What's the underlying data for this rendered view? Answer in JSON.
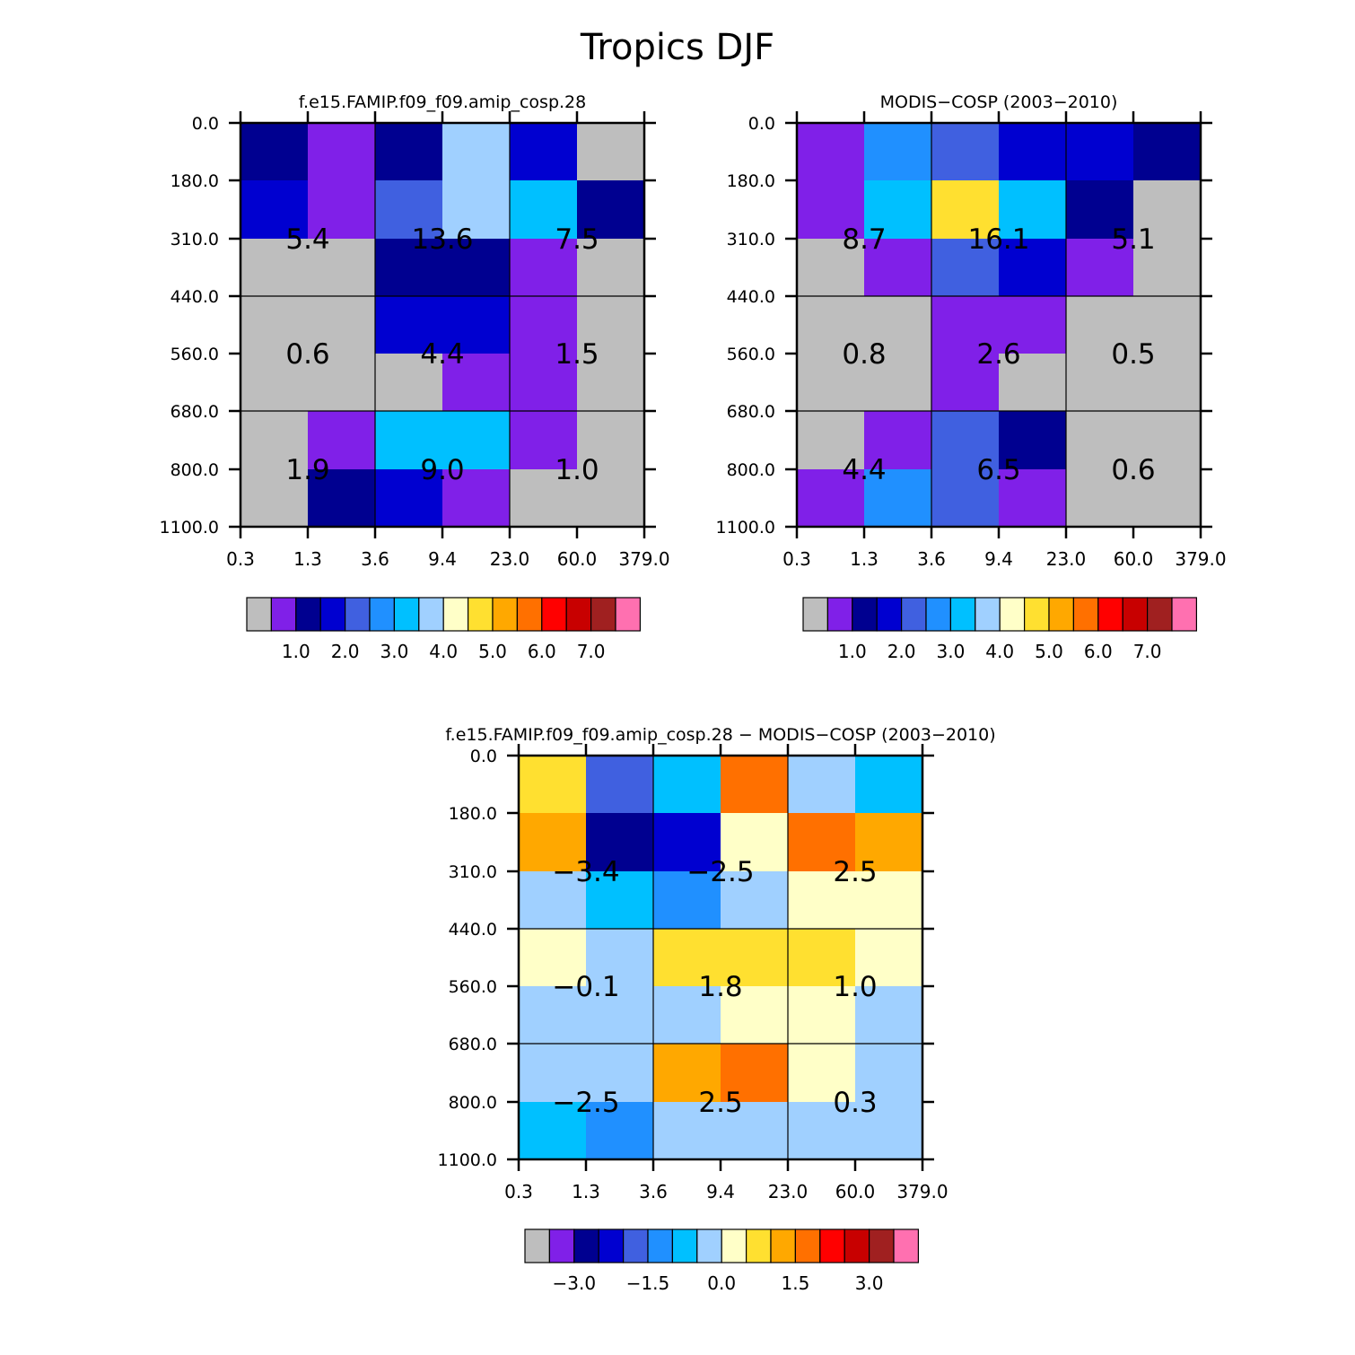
{
  "figure_title": "Tropics DJF",
  "chart_data": [
    {
      "type": "heatmap",
      "title": "f.e15.FAMIP.f09_f09.amip_cosp.28",
      "x_ticks": [
        "0.3",
        "1.3",
        "3.6",
        "9.4",
        "23.0",
        "60.0",
        "379.0"
      ],
      "y_ticks": [
        "0.0",
        "180.0",
        "310.0",
        "440.0",
        "560.0",
        "680.0",
        "800.0",
        "1100.0"
      ],
      "cell_colors": [
        [
          "#000090",
          "#8020E8",
          "#000090",
          "#A0D0FF",
          "#0000D0",
          "#BEBEBE"
        ],
        [
          "#0000D0",
          "#8020E8",
          "#4060E0",
          "#A0D0FF",
          "#00C0FF",
          "#000090"
        ],
        [
          "#BEBEBE",
          "#BEBEBE",
          "#000090",
          "#000090",
          "#8020E8",
          "#BEBEBE"
        ],
        [
          "#BEBEBE",
          "#BEBEBE",
          "#0000D0",
          "#0000D0",
          "#8020E8",
          "#BEBEBE"
        ],
        [
          "#BEBEBE",
          "#BEBEBE",
          "#BEBEBE",
          "#8020E8",
          "#8020E8",
          "#BEBEBE"
        ],
        [
          "#BEBEBE",
          "#8020E8",
          "#00C0FF",
          "#00C0FF",
          "#8020E8",
          "#BEBEBE"
        ],
        [
          "#BEBEBE",
          "#000090",
          "#0000D0",
          "#8020E8",
          "#BEBEBE",
          "#BEBEBE"
        ]
      ],
      "block_values": [
        [
          "5.4",
          "13.6",
          "7.5"
        ],
        [
          "0.6",
          "4.4",
          "1.5"
        ],
        [
          "1.9",
          "9.0",
          "1.0"
        ]
      ],
      "legend": {
        "colors": [
          "#BEBEBE",
          "#8020E8",
          "#000090",
          "#0000D0",
          "#4060E0",
          "#2090FF",
          "#00C0FF",
          "#A0D0FF",
          "#FFFFC8",
          "#FFE030",
          "#FFA800",
          "#FF7000",
          "#FF0000",
          "#C80000",
          "#A02020",
          "#FF70B0"
        ],
        "labels": [
          "1.0",
          "2.0",
          "3.0",
          "4.0",
          "5.0",
          "6.0",
          "7.0"
        ]
      }
    },
    {
      "type": "heatmap",
      "title": "MODIS-COSP (2003-2010)",
      "x_ticks": [
        "0.3",
        "1.3",
        "3.6",
        "9.4",
        "23.0",
        "60.0",
        "379.0"
      ],
      "y_ticks": [
        "0.0",
        "180.0",
        "310.0",
        "440.0",
        "560.0",
        "680.0",
        "800.0",
        "1100.0"
      ],
      "cell_colors": [
        [
          "#8020E8",
          "#2090FF",
          "#4060E0",
          "#0000D0",
          "#0000D0",
          "#000090"
        ],
        [
          "#8020E8",
          "#00C0FF",
          "#FFE030",
          "#00C0FF",
          "#000090",
          "#BEBEBE"
        ],
        [
          "#BEBEBE",
          "#8020E8",
          "#4060E0",
          "#0000D0",
          "#8020E8",
          "#BEBEBE"
        ],
        [
          "#BEBEBE",
          "#BEBEBE",
          "#8020E8",
          "#8020E8",
          "#BEBEBE",
          "#BEBEBE"
        ],
        [
          "#BEBEBE",
          "#BEBEBE",
          "#8020E8",
          "#BEBEBE",
          "#BEBEBE",
          "#BEBEBE"
        ],
        [
          "#BEBEBE",
          "#8020E8",
          "#4060E0",
          "#000090",
          "#BEBEBE",
          "#BEBEBE"
        ],
        [
          "#8020E8",
          "#2090FF",
          "#4060E0",
          "#8020E8",
          "#BEBEBE",
          "#BEBEBE"
        ]
      ],
      "block_values": [
        [
          "8.7",
          "16.1",
          "5.1"
        ],
        [
          "0.8",
          "2.6",
          "0.5"
        ],
        [
          "4.4",
          "6.5",
          "0.6"
        ]
      ],
      "legend": {
        "colors": [
          "#BEBEBE",
          "#8020E8",
          "#000090",
          "#0000D0",
          "#4060E0",
          "#2090FF",
          "#00C0FF",
          "#A0D0FF",
          "#FFFFC8",
          "#FFE030",
          "#FFA800",
          "#FF7000",
          "#FF0000",
          "#C80000",
          "#A02020",
          "#FF70B0"
        ],
        "labels": [
          "1.0",
          "2.0",
          "3.0",
          "4.0",
          "5.0",
          "6.0",
          "7.0"
        ]
      }
    },
    {
      "type": "heatmap",
      "title": "f.e15.FAMIP.f09_f09.amip_cosp.28 - MODIS-COSP (2003-2010)",
      "x_ticks": [
        "0.3",
        "1.3",
        "3.6",
        "9.4",
        "23.0",
        "60.0",
        "379.0"
      ],
      "y_ticks": [
        "0.0",
        "180.0",
        "310.0",
        "440.0",
        "560.0",
        "680.0",
        "800.0",
        "1100.0"
      ],
      "cell_colors": [
        [
          "#FFE030",
          "#4060E0",
          "#00C0FF",
          "#FF7000",
          "#A0D0FF",
          "#00C0FF"
        ],
        [
          "#FFA800",
          "#000090",
          "#0000D0",
          "#FFFFC8",
          "#FF7000",
          "#FFA800"
        ],
        [
          "#A0D0FF",
          "#00C0FF",
          "#2090FF",
          "#A0D0FF",
          "#FFFFC8",
          "#FFFFC8"
        ],
        [
          "#FFFFC8",
          "#A0D0FF",
          "#FFE030",
          "#FFE030",
          "#FFE030",
          "#FFFFC8"
        ],
        [
          "#A0D0FF",
          "#A0D0FF",
          "#A0D0FF",
          "#FFFFC8",
          "#FFFFC8",
          "#A0D0FF"
        ],
        [
          "#A0D0FF",
          "#A0D0FF",
          "#FFA800",
          "#FF7000",
          "#FFFFC8",
          "#A0D0FF"
        ],
        [
          "#00C0FF",
          "#2090FF",
          "#A0D0FF",
          "#A0D0FF",
          "#A0D0FF",
          "#A0D0FF"
        ]
      ],
      "block_values": [
        [
          "-3.4",
          "-2.5",
          "2.5"
        ],
        [
          "-0.1",
          "1.8",
          "1.0"
        ],
        [
          "-2.5",
          "2.5",
          "0.3"
        ]
      ],
      "legend": {
        "colors": [
          "#BEBEBE",
          "#8020E8",
          "#000090",
          "#0000D0",
          "#4060E0",
          "#2090FF",
          "#00C0FF",
          "#A0D0FF",
          "#FFFFC8",
          "#FFE030",
          "#FFA800",
          "#FF7000",
          "#FF0000",
          "#C80000",
          "#A02020",
          "#FF70B0"
        ],
        "labels": [
          "-3.0",
          "-1.5",
          "0.0",
          "1.5",
          "3.0"
        ]
      }
    }
  ]
}
